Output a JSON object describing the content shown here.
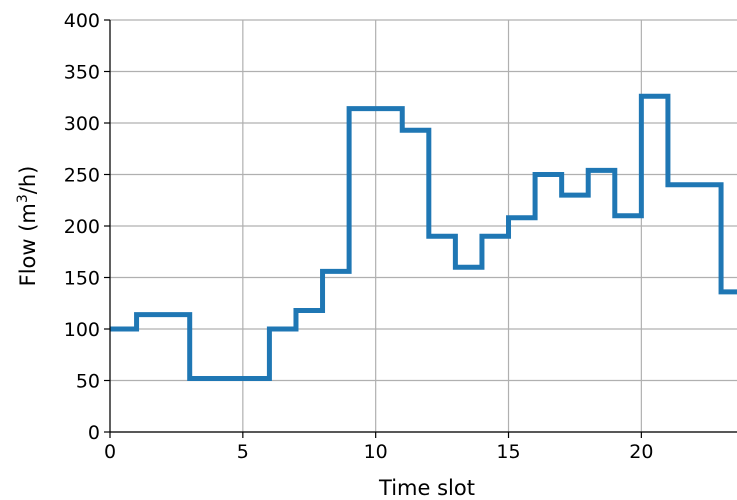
{
  "chart_data": {
    "type": "line",
    "step": "post",
    "xlabel": "Time slot",
    "ylabel_parts": [
      "Flow (m",
      "3",
      "/h)"
    ],
    "xlim": [
      0,
      23.6
    ],
    "ylim": [
      0,
      400
    ],
    "xticks": [
      0,
      5,
      10,
      15,
      20
    ],
    "yticks": [
      0,
      50,
      100,
      150,
      200,
      250,
      300,
      350,
      400
    ],
    "grid": true,
    "color": "#1f77b4",
    "series": [
      {
        "x": [
          0,
          1,
          2,
          3,
          4,
          5,
          6,
          7,
          8,
          9,
          10,
          11,
          12,
          13,
          14,
          15,
          16,
          17,
          18,
          19,
          20,
          21,
          22,
          23,
          24
        ],
        "values": [
          100,
          114,
          114,
          52,
          52,
          52,
          100,
          118,
          156,
          314,
          314,
          293,
          190,
          160,
          190,
          208,
          250,
          230,
          254,
          210,
          326,
          240,
          240,
          136,
          136
        ]
      }
    ]
  }
}
